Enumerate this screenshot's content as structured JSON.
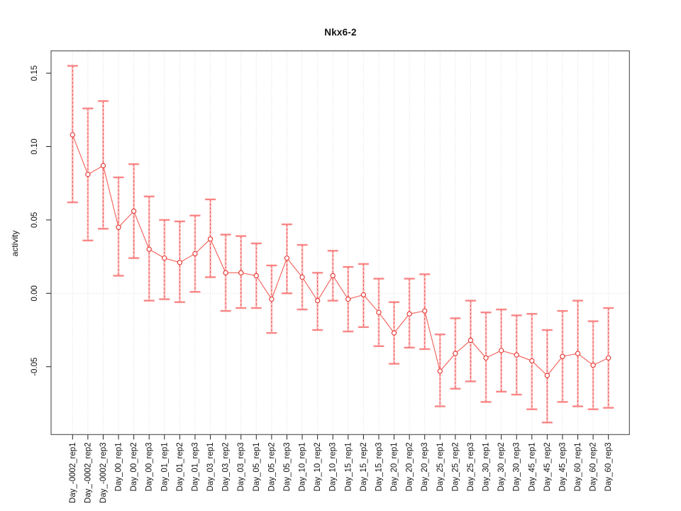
{
  "chart_data": {
    "type": "line",
    "title": "Nkx6-2",
    "xlabel": "",
    "ylabel": "activity",
    "legend_position": "none",
    "grid": "vertical dotted gridlines per category; dotted horizontal line at y=0",
    "marker": "open-circle",
    "ylim": [
      -0.096,
      0.165
    ],
    "ytick_values": [
      0.15,
      0.1,
      0.05,
      0.0,
      -0.05
    ],
    "ytick_labels": [
      "0.15",
      "0.10",
      "0.05",
      "0.00",
      "-0.05"
    ],
    "colors": {
      "line": "#f2564d",
      "marker": "#e53935",
      "errorbar_body": "#fbb0b0",
      "errorbar_dash": "#ef4444",
      "errorbar_cap": "#f98080",
      "gridline": "#d8d8d8",
      "zero_line": "#d8d8d8",
      "box_border": "#4d4d4d",
      "tick": "#222222",
      "text": "#111111"
    },
    "categories": [
      "Day_-0002_rep1",
      "Day_-0002_rep2",
      "Day_-0002_rep3",
      "Day_00_rep1",
      "Day_00_rep2",
      "Day_00_rep3",
      "Day_01_rep1",
      "Day_01_rep2",
      "Day_01_rep3",
      "Day_03_rep1",
      "Day_03_rep2",
      "Day_03_rep3",
      "Day_05_rep1",
      "Day_05_rep2",
      "Day_05_rep3",
      "Day_10_rep1",
      "Day_10_rep2",
      "Day_10_rep3",
      "Day_15_rep1",
      "Day_15_rep2",
      "Day_15_rep3",
      "Day_20_rep1",
      "Day_20_rep2",
      "Day_20_rep3",
      "Day_25_rep1",
      "Day_25_rep2",
      "Day_25_rep3",
      "Day_30_rep1",
      "Day_30_rep2",
      "Day_30_rep3",
      "Day_45_rep1",
      "Day_45_rep2",
      "Day_45_rep3",
      "Day_60_rep1",
      "Day_60_rep2",
      "Day_60_rep3"
    ],
    "values": [
      0.108,
      0.081,
      0.087,
      0.045,
      0.056,
      0.03,
      0.024,
      0.021,
      0.027,
      0.037,
      0.014,
      0.014,
      0.012,
      -0.004,
      0.024,
      0.011,
      -0.005,
      0.012,
      -0.004,
      -0.001,
      -0.013,
      -0.027,
      -0.014,
      -0.012,
      -0.053,
      -0.041,
      -0.032,
      -0.044,
      -0.039,
      -0.042,
      -0.046,
      -0.056,
      -0.043,
      -0.041,
      -0.049,
      -0.044
    ],
    "error_low": [
      0.062,
      0.036,
      0.044,
      0.012,
      0.024,
      -0.005,
      -0.004,
      -0.006,
      0.001,
      0.011,
      -0.012,
      -0.01,
      -0.01,
      -0.027,
      0.0,
      -0.011,
      -0.025,
      -0.005,
      -0.026,
      -0.023,
      -0.036,
      -0.048,
      -0.037,
      -0.038,
      -0.077,
      -0.065,
      -0.06,
      -0.074,
      -0.067,
      -0.069,
      -0.079,
      -0.088,
      -0.074,
      -0.077,
      -0.079,
      -0.078
    ],
    "error_high": [
      0.155,
      0.126,
      0.131,
      0.079,
      0.088,
      0.066,
      0.05,
      0.049,
      0.053,
      0.064,
      0.04,
      0.039,
      0.034,
      0.019,
      0.047,
      0.033,
      0.014,
      0.029,
      0.018,
      0.02,
      0.01,
      -0.006,
      0.01,
      0.013,
      -0.028,
      -0.017,
      -0.005,
      -0.013,
      -0.011,
      -0.015,
      -0.014,
      -0.025,
      -0.012,
      -0.005,
      -0.019,
      -0.01
    ]
  }
}
